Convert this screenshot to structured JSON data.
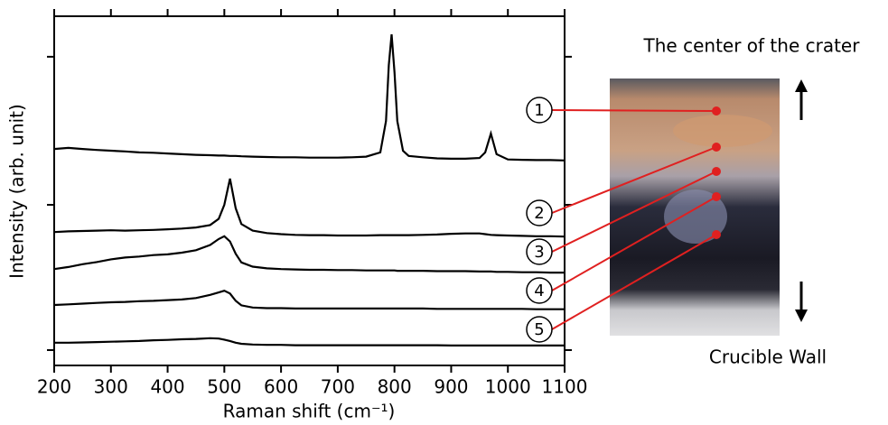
{
  "chart_data": {
    "type": "line",
    "xlabel": "Raman shift (cm⁻¹)",
    "ylabel": "Intensity (arb. unit)",
    "annotations": [
      "The center of the crater",
      "Crucible Wall"
    ],
    "xlim": [
      200,
      1100
    ],
    "xticks": [
      200,
      300,
      400,
      500,
      600,
      700,
      800,
      900,
      1000,
      1100
    ],
    "ylim": [
      0,
      100
    ],
    "yticks": [
      4.4,
      46,
      88.4
    ],
    "x": [
      200,
      225,
      250,
      275,
      300,
      325,
      350,
      375,
      400,
      425,
      450,
      475,
      490,
      500,
      510,
      520,
      530,
      550,
      575,
      600,
      625,
      650,
      675,
      700,
      725,
      750,
      775,
      785,
      790,
      795,
      800,
      805,
      815,
      825,
      850,
      875,
      900,
      925,
      950,
      960,
      970,
      980,
      1000,
      1025,
      1050,
      1075,
      1100
    ],
    "series": [
      {
        "name": "1",
        "color": "#000000",
        "values": [
          62.0,
          62.3,
          62.0,
          61.7,
          61.5,
          61.3,
          61.0,
          60.9,
          60.7,
          60.5,
          60.3,
          60.2,
          60.1,
          60.1,
          60.0,
          60.0,
          59.9,
          59.8,
          59.7,
          59.6,
          59.6,
          59.5,
          59.5,
          59.5,
          59.6,
          59.8,
          61.0,
          70,
          86,
          94.8,
          84,
          70,
          61.5,
          60.0,
          59.6,
          59.3,
          59.2,
          59.2,
          59.4,
          61,
          66.4,
          60.5,
          59.0,
          58.9,
          58.8,
          58.8,
          58.7
        ]
      },
      {
        "name": "2",
        "color": "#000000",
        "values": [
          38.2,
          38.4,
          38.5,
          38.6,
          38.7,
          38.6,
          38.7,
          38.8,
          39.0,
          39.2,
          39.5,
          40.2,
          42,
          46,
          53.5,
          45,
          40.5,
          38.6,
          37.9,
          37.6,
          37.4,
          37.3,
          37.3,
          37.2,
          37.2,
          37.2,
          37.3,
          37.3,
          37.3,
          37.3,
          37.3,
          37.3,
          37.3,
          37.3,
          37.4,
          37.5,
          37.7,
          37.8,
          37.8,
          37.6,
          37.4,
          37.3,
          37.2,
          37.1,
          37.0,
          37.0,
          36.9
        ]
      },
      {
        "name": "3",
        "color": "#000000",
        "values": [
          27.6,
          28.2,
          29.0,
          29.6,
          30.4,
          30.9,
          31.2,
          31.6,
          31.8,
          32.3,
          33.0,
          34.5,
          36.2,
          37.0,
          35.5,
          32.0,
          29.5,
          28.3,
          27.8,
          27.6,
          27.5,
          27.4,
          27.4,
          27.3,
          27.3,
          27.2,
          27.2,
          27.2,
          27.2,
          27.2,
          27.2,
          27.1,
          27.1,
          27.1,
          27.1,
          27.0,
          27.0,
          27.0,
          26.9,
          26.9,
          26.9,
          26.8,
          26.8,
          26.7,
          26.7,
          26.6,
          26.6
        ]
      },
      {
        "name": "4",
        "color": "#000000",
        "values": [
          17.3,
          17.5,
          17.7,
          17.9,
          18.1,
          18.2,
          18.4,
          18.5,
          18.7,
          18.9,
          19.3,
          20.2,
          20.9,
          21.4,
          20.6,
          18.5,
          17.2,
          16.6,
          16.4,
          16.4,
          16.3,
          16.3,
          16.3,
          16.3,
          16.3,
          16.3,
          16.3,
          16.3,
          16.3,
          16.3,
          16.3,
          16.3,
          16.3,
          16.3,
          16.3,
          16.2,
          16.2,
          16.2,
          16.2,
          16.2,
          16.2,
          16.2,
          16.2,
          16.2,
          16.1,
          16.1,
          16.1
        ]
      },
      {
        "name": "5",
        "color": "#000000",
        "values": [
          6.5,
          6.5,
          6.6,
          6.7,
          6.8,
          6.9,
          7.0,
          7.2,
          7.3,
          7.5,
          7.6,
          7.8,
          7.7,
          7.4,
          7.0,
          6.5,
          6.2,
          6.0,
          5.9,
          5.9,
          5.8,
          5.8,
          5.8,
          5.8,
          5.8,
          5.8,
          5.8,
          5.8,
          5.8,
          5.8,
          5.8,
          5.8,
          5.8,
          5.8,
          5.8,
          5.8,
          5.7,
          5.7,
          5.7,
          5.7,
          5.7,
          5.7,
          5.7,
          5.7,
          5.7,
          5.7,
          5.7
        ]
      }
    ]
  }
}
